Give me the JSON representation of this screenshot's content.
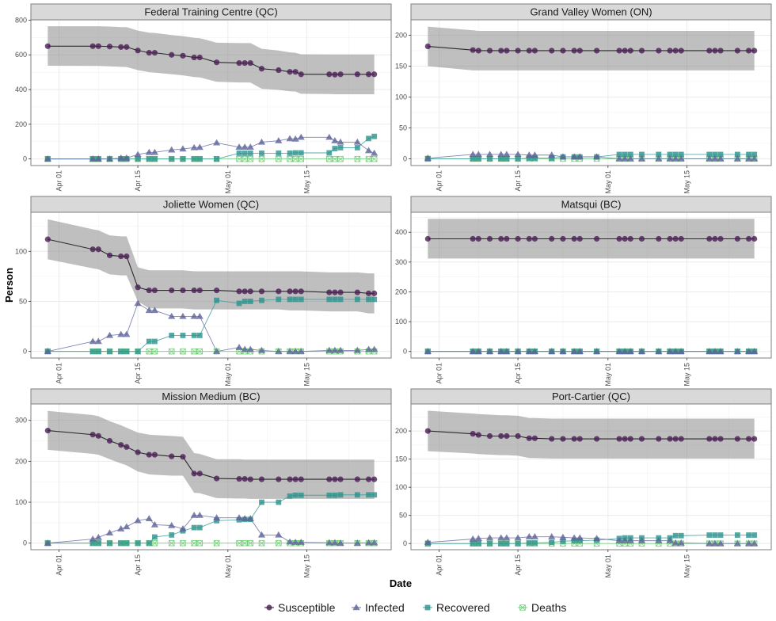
{
  "chart_data": {
    "type": "line",
    "xlabel": "Date",
    "ylabel": "Person",
    "x_ticks": [
      "Apr 01",
      "Apr 15",
      "May 01",
      "May 15"
    ],
    "x_tick_dates": [
      "2020-04-01",
      "2020-04-15",
      "2020-05-01",
      "2020-05-15"
    ],
    "x_range": [
      "2020-03-27",
      "2020-05-30"
    ],
    "legend": {
      "position": "bottom",
      "entries": [
        {
          "name": "Susceptible",
          "shape": "circle",
          "color": "#4b1e55"
        },
        {
          "name": "Infected",
          "shape": "triangle",
          "color": "#5d6299"
        },
        {
          "name": "Recovered",
          "shape": "square",
          "color": "#2b928c"
        },
        {
          "name": "Deaths",
          "shape": "square-cross-open",
          "color": "#5cc863"
        }
      ]
    },
    "band_series": "Susceptible",
    "dates": [
      "2020-03-30",
      "2020-04-07",
      "2020-04-08",
      "2020-04-10",
      "2020-04-12",
      "2020-04-13",
      "2020-04-15",
      "2020-04-17",
      "2020-04-18",
      "2020-04-21",
      "2020-04-23",
      "2020-04-25",
      "2020-04-26",
      "2020-04-29",
      "2020-05-03",
      "2020-05-04",
      "2020-05-05",
      "2020-05-07",
      "2020-05-10",
      "2020-05-12",
      "2020-05-13",
      "2020-05-14",
      "2020-05-19",
      "2020-05-20",
      "2020-05-21",
      "2020-05-24",
      "2020-05-26",
      "2020-05-27"
    ],
    "panels": [
      {
        "title": "Federal Training Centre (QC)",
        "y_ticks": [
          0,
          200,
          400,
          600,
          800
        ],
        "ylim": [
          -38,
          802
        ],
        "series": {
          "Susceptible": [
            650,
            650,
            650,
            648,
            645,
            645,
            625,
            612,
            612,
            600,
            595,
            585,
            585,
            557,
            553,
            553,
            553,
            520,
            512,
            502,
            502,
            488,
            488,
            486,
            488,
            488,
            488,
            488
          ],
          "Infected": [
            0,
            0,
            0,
            0,
            5,
            5,
            25,
            38,
            38,
            52,
            58,
            65,
            67,
            93,
            68,
            68,
            68,
            97,
            105,
            117,
            115,
            125,
            125,
            105,
            97,
            97,
            48,
            33
          ],
          "Recovered": [
            0,
            0,
            0,
            0,
            0,
            0,
            0,
            0,
            0,
            0,
            0,
            0,
            0,
            0,
            33,
            33,
            33,
            33,
            33,
            33,
            35,
            35,
            35,
            60,
            65,
            65,
            118,
            130
          ],
          "Deaths": [
            0,
            0,
            0,
            0,
            0,
            0,
            0,
            0,
            0,
            0,
            0,
            0,
            0,
            0,
            0,
            0,
            0,
            0,
            0,
            0,
            0,
            0,
            0,
            0,
            0,
            0,
            0,
            0
          ]
        },
        "band_lower": [
          537,
          536,
          536,
          534,
          531,
          530,
          512,
          500,
          498,
          488,
          482,
          472,
          470,
          445,
          441,
          441,
          440,
          405,
          398,
          390,
          388,
          376,
          374,
          373,
          373,
          373,
          373,
          373
        ],
        "band_upper": [
          765,
          765,
          765,
          763,
          760,
          760,
          740,
          728,
          726,
          714,
          708,
          698,
          696,
          670,
          668,
          668,
          668,
          635,
          625,
          614,
          612,
          603,
          602,
          602,
          602,
          602,
          602,
          602
        ]
      },
      {
        "title": "Grand Valley Women (ON)",
        "y_ticks": [
          0,
          50,
          100,
          150,
          200
        ],
        "ylim": [
          -11,
          225
        ],
        "series": {
          "Susceptible": [
            182,
            176,
            175,
            175,
            175,
            175,
            175,
            175,
            175,
            175,
            175,
            175,
            175,
            175,
            175,
            175,
            175,
            175,
            175,
            175,
            175,
            175,
            175,
            175,
            175,
            175,
            175,
            175
          ],
          "Infected": [
            1,
            7,
            7,
            7,
            7,
            7,
            7,
            6,
            6,
            6,
            3,
            3,
            3,
            3,
            0,
            0,
            0,
            0,
            0,
            0,
            0,
            0,
            0,
            0,
            0,
            0,
            0,
            0
          ],
          "Recovered": [
            0,
            0,
            0,
            0,
            0,
            0,
            0,
            1,
            1,
            1,
            3,
            3,
            3,
            3,
            7,
            7,
            7,
            7,
            7,
            7,
            7,
            7,
            7,
            7,
            7,
            7,
            7,
            7
          ],
          "Deaths": [
            0,
            0,
            0,
            0,
            0,
            0,
            0,
            0,
            0,
            0,
            0,
            0,
            0,
            0,
            0,
            0,
            0,
            0,
            0,
            0,
            0,
            0,
            0,
            0,
            0,
            0,
            0,
            0
          ]
        },
        "band_lower": [
          150,
          143,
          143,
          143,
          143,
          143,
          143,
          143,
          143,
          143,
          143,
          143,
          143,
          143,
          143,
          143,
          143,
          143,
          143,
          143,
          143,
          143,
          143,
          143,
          143,
          143,
          143,
          143
        ],
        "band_upper": [
          214,
          208,
          207,
          207,
          207,
          207,
          207,
          207,
          207,
          207,
          207,
          207,
          207,
          207,
          207,
          207,
          207,
          207,
          207,
          207,
          207,
          207,
          207,
          207,
          207,
          207,
          207,
          207
        ]
      },
      {
        "title": "Joliette Women (QC)",
        "y_ticks": [
          0,
          50,
          100
        ],
        "ylim": [
          -6.6,
          139
        ],
        "series": {
          "Susceptible": [
            112,
            102,
            102,
            96,
            95,
            95,
            64,
            61,
            61,
            61,
            61,
            61,
            61,
            61,
            60,
            60,
            60,
            60,
            60,
            60,
            60,
            60,
            59,
            59,
            59,
            59,
            58,
            58
          ],
          "Infected": [
            0,
            10,
            10,
            16,
            17,
            17,
            48,
            41,
            41,
            35,
            35,
            35,
            35,
            0,
            4,
            2,
            2,
            1,
            0,
            0,
            0,
            0,
            1,
            1,
            1,
            1,
            2,
            2
          ],
          "Recovered": [
            0,
            0,
            0,
            0,
            0,
            0,
            0,
            10,
            10,
            16,
            16,
            16,
            16,
            51,
            48,
            50,
            50,
            51,
            52,
            52,
            52,
            52,
            52,
            52,
            52,
            52,
            52,
            52
          ],
          "Deaths": [
            0,
            0,
            0,
            0,
            0,
            0,
            0,
            0,
            0,
            0,
            0,
            0,
            0,
            0,
            0,
            0,
            0,
            0,
            0,
            0,
            0,
            0,
            0,
            0,
            0,
            0,
            0,
            0
          ]
        },
        "band_lower": [
          92,
          83,
          82,
          77,
          76,
          76,
          50,
          43,
          43,
          43,
          43,
          42,
          42,
          42,
          42,
          42,
          42,
          42,
          42,
          41,
          41,
          41,
          40,
          40,
          40,
          40,
          38,
          38
        ],
        "band_upper": [
          132,
          122,
          121,
          116,
          115,
          115,
          84,
          81,
          81,
          81,
          81,
          80,
          80,
          80,
          80,
          80,
          80,
          80,
          80,
          80,
          80,
          80,
          79,
          79,
          79,
          79,
          78,
          78
        ]
      },
      {
        "title": "Matsqui (BC)",
        "y_ticks": [
          0,
          100,
          200,
          300,
          400
        ],
        "ylim": [
          -22,
          467
        ],
        "series": {
          "Susceptible": [
            378,
            378,
            378,
            378,
            378,
            378,
            378,
            378,
            378,
            378,
            378,
            378,
            378,
            378,
            378,
            378,
            378,
            378,
            378,
            378,
            378,
            378,
            378,
            378,
            378,
            378,
            378,
            378
          ],
          "Infected": [
            0,
            0,
            0,
            0,
            0,
            0,
            0,
            0,
            0,
            0,
            0,
            0,
            0,
            0,
            0,
            0,
            0,
            0,
            0,
            0,
            0,
            0,
            0,
            0,
            0,
            0,
            0,
            0
          ],
          "Recovered": [
            0,
            0,
            0,
            0,
            0,
            0,
            0,
            0,
            0,
            0,
            0,
            0,
            0,
            0,
            0,
            0,
            0,
            0,
            0,
            0,
            0,
            0,
            0,
            0,
            0,
            0,
            0,
            0
          ],
          "Deaths": [
            0,
            0,
            0,
            0,
            0,
            0,
            0,
            0,
            0,
            0,
            0,
            0,
            0,
            0,
            0,
            0,
            0,
            0,
            0,
            0,
            0,
            0,
            0,
            0,
            0,
            0,
            0,
            0
          ]
        },
        "band_lower": [
          312,
          312,
          312,
          312,
          312,
          312,
          312,
          312,
          312,
          312,
          312,
          312,
          312,
          312,
          312,
          312,
          312,
          312,
          312,
          312,
          312,
          312,
          312,
          312,
          312,
          312,
          312,
          312
        ],
        "band_upper": [
          445,
          445,
          445,
          445,
          445,
          445,
          445,
          445,
          445,
          445,
          445,
          445,
          445,
          445,
          445,
          445,
          445,
          445,
          445,
          445,
          445,
          445,
          445,
          445,
          445,
          445,
          445,
          445
        ]
      },
      {
        "title": "Mission Medium (BC)",
        "y_ticks": [
          0,
          100,
          200,
          300
        ],
        "ylim": [
          -16,
          340
        ],
        "series": {
          "Susceptible": [
            275,
            265,
            262,
            250,
            240,
            235,
            222,
            216,
            216,
            212,
            211,
            170,
            170,
            158,
            157,
            157,
            156,
            156,
            156,
            156,
            156,
            156,
            156,
            156,
            156,
            156,
            156,
            156
          ],
          "Infected": [
            0,
            10,
            14,
            25,
            35,
            40,
            55,
            60,
            45,
            43,
            35,
            68,
            68,
            62,
            62,
            60,
            60,
            20,
            20,
            3,
            2,
            2,
            1,
            1,
            0,
            0,
            1,
            1
          ],
          "Recovered": [
            0,
            0,
            0,
            0,
            0,
            0,
            0,
            0,
            15,
            20,
            30,
            38,
            38,
            55,
            57,
            58,
            58,
            100,
            100,
            115,
            117,
            117,
            117,
            117,
            118,
            118,
            118,
            118
          ],
          "Deaths": [
            0,
            0,
            0,
            0,
            0,
            0,
            0,
            0,
            0,
            0,
            0,
            0,
            0,
            0,
            0,
            0,
            0,
            0,
            0,
            0,
            0,
            0,
            0,
            0,
            0,
            0,
            0,
            0
          ]
        },
        "band_lower": [
          228,
          218,
          216,
          205,
          195,
          190,
          175,
          168,
          167,
          165,
          165,
          123,
          122,
          110,
          109,
          109,
          108,
          108,
          108,
          108,
          108,
          108,
          108,
          108,
          108,
          108,
          108,
          108
        ],
        "band_upper": [
          323,
          313,
          310,
          298,
          288,
          282,
          270,
          265,
          264,
          262,
          260,
          220,
          218,
          205,
          205,
          204,
          204,
          204,
          204,
          204,
          204,
          204,
          204,
          204,
          204,
          204,
          204,
          204
        ]
      },
      {
        "title": "Port-Cartier (QC)",
        "y_ticks": [
          0,
          50,
          100,
          150,
          200
        ],
        "ylim": [
          -11,
          248
        ],
        "series": {
          "Susceptible": [
            200,
            195,
            193,
            191,
            191,
            191,
            191,
            187,
            187,
            186,
            186,
            186,
            186,
            186,
            186,
            186,
            186,
            186,
            186,
            186,
            186,
            186,
            186,
            186,
            186,
            186,
            186,
            186
          ],
          "Infected": [
            2,
            8,
            9,
            10,
            10,
            10,
            10,
            12,
            12,
            12,
            11,
            10,
            10,
            9,
            5,
            5,
            5,
            5,
            5,
            5,
            1,
            1,
            0,
            0,
            0,
            0,
            0,
            0
          ],
          "Recovered": [
            0,
            0,
            0,
            0,
            0,
            0,
            0,
            1,
            1,
            2,
            4,
            5,
            5,
            6,
            9,
            10,
            10,
            10,
            10,
            10,
            14,
            14,
            15,
            15,
            15,
            15,
            15,
            15
          ],
          "Deaths": [
            0,
            0,
            0,
            0,
            0,
            0,
            0,
            0,
            0,
            0,
            0,
            0,
            0,
            0,
            0,
            0,
            0,
            0,
            0,
            0,
            0,
            0,
            0,
            0,
            0,
            0,
            0,
            0
          ]
        },
        "band_lower": [
          164,
          160,
          159,
          158,
          157,
          157,
          156,
          152,
          152,
          151,
          151,
          151,
          151,
          151,
          151,
          151,
          151,
          151,
          151,
          151,
          151,
          151,
          151,
          151,
          151,
          151,
          151,
          151
        ],
        "band_upper": [
          236,
          231,
          230,
          229,
          228,
          228,
          227,
          223,
          223,
          222,
          222,
          222,
          222,
          222,
          222,
          222,
          222,
          222,
          222,
          222,
          222,
          222,
          222,
          222,
          222,
          222,
          222,
          222
        ]
      }
    ]
  }
}
